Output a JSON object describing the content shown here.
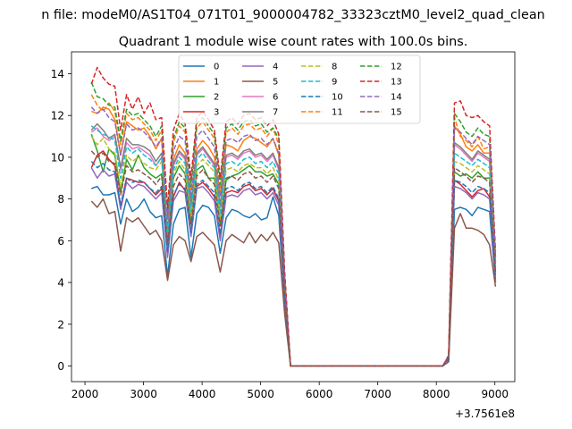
{
  "chart_data": {
    "type": "line",
    "suptitle": "n file: modeM0/AS1T04_071T01_9000004782_33323cztM0_level2_quad_clean",
    "title": "Quadrant 1 module wise count rates with 100.0s bins.",
    "xlabel": "",
    "ylabel": "",
    "x_offset_label": "+3.7561e8",
    "xlim": [
      1770,
      9340
    ],
    "ylim": [
      -0.75,
      15.05
    ],
    "xticks": [
      2000,
      3000,
      4000,
      5000,
      6000,
      7000,
      8000,
      9000
    ],
    "yticks": [
      0,
      2,
      4,
      6,
      8,
      10,
      12,
      14
    ],
    "x": [
      2110,
      2210,
      2310,
      2410,
      2510,
      2610,
      2710,
      2810,
      2910,
      3010,
      3110,
      3210,
      3310,
      3410,
      3510,
      3610,
      3710,
      3810,
      3910,
      4010,
      4110,
      4210,
      4310,
      4410,
      4510,
      4610,
      4710,
      4810,
      4910,
      5010,
      5110,
      5210,
      5310,
      5410,
      5510,
      8110,
      8210,
      8310,
      8410,
      8510,
      8610,
      8710,
      8810,
      8910,
      9010
    ],
    "zero_segment": [
      5510,
      8110
    ],
    "legend": {
      "location": "upper-center",
      "columns": 4
    },
    "series": [
      {
        "name": "0",
        "color": "#1f77b4",
        "dash": "solid",
        "values": [
          8.5,
          8.6,
          8.2,
          8.2,
          8.3,
          6.8,
          8.0,
          7.4,
          7.6,
          8.0,
          7.4,
          7.1,
          7.2,
          4.3,
          6.8,
          7.5,
          7.6,
          5.2,
          7.3,
          7.7,
          7.6,
          7.2,
          5.4,
          7.1,
          7.5,
          7.4,
          7.2,
          7.1,
          7.3,
          7.0,
          7.1,
          8.1,
          7.2,
          3.0,
          0.0,
          0.0,
          0.3,
          7.5,
          7.6,
          7.5,
          7.2,
          7.6,
          7.5,
          7.4,
          4.0
        ]
      },
      {
        "name": "1",
        "color": "#ff7f0e",
        "dash": "solid",
        "values": [
          12.2,
          12.1,
          12.4,
          12.3,
          11.8,
          10.1,
          11.7,
          11.5,
          11.3,
          11.4,
          11.0,
          10.4,
          10.9,
          6.1,
          9.9,
          10.6,
          10.2,
          7.8,
          10.4,
          10.8,
          10.5,
          10.0,
          8.2,
          10.6,
          10.5,
          10.3,
          10.8,
          11.0,
          10.9,
          10.7,
          10.5,
          10.9,
          10.1,
          4.0,
          0.0,
          0.0,
          0.5,
          11.5,
          11.1,
          10.5,
          10.3,
          10.6,
          10.2,
          10.2,
          5.0
        ]
      },
      {
        "name": "2",
        "color": "#2ca02c",
        "dash": "solid",
        "values": [
          11.1,
          10.3,
          9.3,
          10.4,
          10.1,
          8.3,
          9.9,
          9.4,
          10.1,
          9.5,
          9.2,
          9.0,
          9.2,
          5.9,
          9.0,
          9.6,
          9.2,
          6.8,
          9.4,
          9.6,
          9.0,
          9.0,
          6.8,
          8.9,
          9.1,
          9.2,
          9.4,
          9.6,
          9.3,
          9.3,
          9.1,
          9.2,
          8.7,
          3.6,
          0.0,
          0.0,
          0.4,
          9.3,
          9.1,
          9.2,
          9.0,
          9.3,
          9.0,
          9.0,
          4.5
        ]
      },
      {
        "name": "3",
        "color": "#d62728",
        "dash": "solid",
        "values": [
          9.5,
          10.1,
          10.3,
          9.9,
          9.6,
          7.6,
          9.0,
          8.9,
          8.8,
          8.8,
          8.5,
          8.2,
          8.5,
          5.3,
          8.1,
          8.8,
          8.4,
          6.3,
          8.6,
          8.8,
          8.5,
          8.1,
          6.2,
          8.3,
          8.4,
          8.3,
          8.6,
          8.7,
          8.4,
          8.5,
          8.2,
          8.5,
          7.9,
          3.3,
          0.0,
          0.0,
          0.4,
          8.9,
          8.7,
          8.4,
          8.1,
          8.4,
          8.5,
          8.1,
          4.1
        ]
      },
      {
        "name": "4",
        "color": "#9467bd",
        "dash": "solid",
        "values": [
          9.5,
          9.0,
          9.4,
          9.1,
          9.2,
          7.5,
          8.8,
          8.5,
          8.7,
          8.6,
          8.3,
          8.0,
          8.3,
          5.2,
          7.9,
          8.4,
          8.3,
          6.2,
          8.5,
          8.6,
          8.3,
          7.9,
          6.0,
          8.1,
          8.2,
          8.1,
          8.4,
          8.5,
          8.2,
          8.3,
          8.0,
          8.3,
          7.7,
          3.2,
          0.0,
          0.0,
          0.3,
          8.6,
          8.5,
          8.3,
          8.0,
          8.3,
          8.2,
          8.0,
          4.0
        ]
      },
      {
        "name": "5",
        "color": "#8c564b",
        "dash": "solid",
        "values": [
          7.9,
          7.6,
          8.0,
          7.3,
          7.4,
          5.5,
          7.1,
          6.9,
          7.1,
          6.7,
          6.3,
          6.5,
          6.0,
          4.1,
          5.8,
          6.2,
          6.0,
          5.0,
          6.2,
          6.4,
          6.1,
          5.8,
          4.5,
          6.0,
          6.3,
          6.1,
          5.9,
          6.4,
          5.9,
          6.3,
          6.0,
          6.4,
          5.9,
          2.5,
          0.0,
          0.0,
          0.2,
          6.6,
          7.3,
          6.6,
          6.6,
          6.5,
          6.3,
          5.8,
          3.8
        ]
      },
      {
        "name": "6",
        "color": "#e377c2",
        "dash": "solid",
        "values": [
          11.2,
          11.4,
          11.0,
          10.8,
          11.0,
          9.4,
          10.7,
          10.4,
          10.5,
          10.3,
          10.1,
          9.6,
          10.0,
          6.3,
          9.6,
          10.2,
          9.9,
          7.6,
          10.1,
          10.4,
          10.0,
          9.6,
          7.6,
          10.0,
          10.1,
          9.9,
          10.2,
          10.3,
          10.0,
          10.1,
          9.8,
          10.1,
          9.4,
          3.9,
          0.0,
          0.0,
          0.4,
          10.6,
          10.4,
          10.1,
          9.8,
          10.2,
          10.0,
          9.8,
          4.8
        ]
      },
      {
        "name": "7",
        "color": "#7f7f7f",
        "dash": "solid",
        "values": [
          11.3,
          11.6,
          11.3,
          10.9,
          11.1,
          9.5,
          10.9,
          10.6,
          10.6,
          10.5,
          10.3,
          9.8,
          10.2,
          6.4,
          9.7,
          10.3,
          10.0,
          7.7,
          10.2,
          10.5,
          10.1,
          9.7,
          7.7,
          10.1,
          10.2,
          10.0,
          10.3,
          10.4,
          10.1,
          10.2,
          9.9,
          10.2,
          9.5,
          3.9,
          0.0,
          0.0,
          0.4,
          10.7,
          10.5,
          10.2,
          9.9,
          10.3,
          10.1,
          9.9,
          4.9
        ]
      },
      {
        "name": "8",
        "color": "#bcbd22",
        "dash": "dashed",
        "values": [
          11.0,
          10.6,
          10.9,
          10.4,
          10.2,
          8.6,
          10.1,
          9.8,
          10.0,
          9.7,
          9.5,
          9.4,
          9.8,
          6.3,
          9.2,
          9.8,
          9.4,
          7.1,
          9.6,
          9.9,
          9.6,
          9.3,
          7.0,
          9.4,
          9.5,
          9.3,
          9.6,
          9.7,
          9.5,
          9.5,
          9.2,
          9.5,
          8.9,
          3.7,
          0.0,
          0.0,
          0.4,
          9.8,
          9.7,
          9.5,
          9.3,
          9.6,
          9.4,
          9.2,
          4.6
        ]
      },
      {
        "name": "9",
        "color": "#17becf",
        "dash": "dashed",
        "values": [
          11.5,
          11.3,
          11.1,
          11.0,
          10.8,
          9.0,
          10.5,
          10.2,
          10.4,
          10.1,
          9.9,
          9.6,
          10.0,
          6.3,
          9.4,
          10.0,
          9.7,
          7.4,
          9.9,
          10.2,
          9.8,
          9.5,
          7.3,
          9.7,
          9.8,
          9.6,
          9.9,
          10.0,
          9.7,
          9.8,
          9.5,
          9.8,
          9.2,
          3.8,
          0.0,
          0.0,
          0.4,
          10.2,
          10.0,
          9.8,
          9.6,
          9.9,
          9.7,
          9.5,
          4.7
        ]
      },
      {
        "name": "10",
        "color": "#1f77b4",
        "dash": "dashed",
        "values": [
          9.8,
          9.5,
          9.7,
          9.4,
          9.3,
          7.7,
          9.0,
          8.8,
          8.9,
          8.8,
          8.5,
          8.3,
          8.6,
          5.5,
          8.2,
          8.7,
          8.5,
          6.4,
          8.7,
          8.9,
          8.6,
          8.3,
          6.3,
          8.5,
          8.6,
          8.4,
          8.7,
          8.8,
          8.5,
          8.6,
          8.3,
          8.6,
          8.0,
          3.3,
          0.0,
          0.0,
          0.3,
          8.9,
          8.8,
          8.6,
          8.3,
          8.6,
          8.5,
          8.3,
          4.2
        ]
      },
      {
        "name": "11",
        "color": "#ff7f0e",
        "dash": "dashed",
        "values": [
          13.0,
          12.5,
          12.2,
          12.6,
          12.2,
          10.6,
          12.1,
          11.8,
          11.9,
          11.6,
          11.3,
          10.8,
          11.3,
          7.0,
          10.7,
          11.5,
          11.2,
          8.4,
          11.4,
          11.7,
          11.3,
          10.9,
          8.5,
          11.2,
          11.4,
          11.1,
          11.5,
          11.6,
          11.3,
          11.4,
          11.0,
          11.4,
          10.6,
          4.3,
          0.0,
          0.0,
          0.5,
          11.9,
          11.0,
          10.8,
          10.5,
          11.0,
          10.4,
          10.5,
          5.0
        ]
      },
      {
        "name": "12",
        "color": "#2ca02c",
        "dash": "dashed",
        "values": [
          13.6,
          12.9,
          12.8,
          12.5,
          12.4,
          10.8,
          12.3,
          12.0,
          12.1,
          11.8,
          11.5,
          11.0,
          11.5,
          7.2,
          10.9,
          11.7,
          11.4,
          8.6,
          11.6,
          11.9,
          11.5,
          11.1,
          8.7,
          11.4,
          11.6,
          11.3,
          11.7,
          11.8,
          11.5,
          11.6,
          11.2,
          11.4,
          10.9,
          4.4,
          0.0,
          0.0,
          0.5,
          12.1,
          11.7,
          11.2,
          11.0,
          11.4,
          11.1,
          11.0,
          5.2
        ]
      },
      {
        "name": "13",
        "color": "#d62728",
        "dash": "dashed",
        "values": [
          13.5,
          14.3,
          13.8,
          13.5,
          13.4,
          11.3,
          13.0,
          12.3,
          12.9,
          12.1,
          12.6,
          11.8,
          11.9,
          7.6,
          11.3,
          12.1,
          11.6,
          9.0,
          11.9,
          12.2,
          11.8,
          11.3,
          9.0,
          11.7,
          11.9,
          11.6,
          12.0,
          12.1,
          11.8,
          11.9,
          11.5,
          11.8,
          11.1,
          4.5,
          0.0,
          0.0,
          0.5,
          12.6,
          12.7,
          12.0,
          11.9,
          12.0,
          11.7,
          11.5,
          5.5
        ]
      },
      {
        "name": "14",
        "color": "#9467bd",
        "dash": "dashed",
        "values": [
          12.4,
          12.1,
          12.3,
          11.9,
          11.7,
          10.1,
          11.6,
          11.3,
          11.4,
          11.2,
          10.9,
          10.5,
          10.9,
          6.8,
          10.3,
          11.0,
          10.8,
          8.1,
          11.0,
          11.3,
          10.9,
          10.5,
          8.1,
          10.8,
          10.9,
          10.7,
          11.0,
          11.1,
          10.8,
          10.9,
          10.6,
          10.9,
          10.2,
          4.2,
          0.0,
          0.0,
          0.5,
          11.4,
          11.2,
          10.9,
          10.6,
          11.0,
          10.8,
          10.6,
          5.2
        ]
      },
      {
        "name": "15",
        "color": "#8c564b",
        "dash": "dashed",
        "values": [
          10.3,
          10.0,
          10.2,
          9.8,
          9.7,
          8.2,
          9.6,
          9.3,
          9.4,
          9.2,
          9.0,
          8.7,
          9.1,
          5.8,
          8.6,
          9.2,
          8.9,
          6.8,
          9.1,
          9.4,
          9.0,
          8.7,
          6.7,
          9.0,
          9.1,
          8.9,
          9.2,
          9.3,
          9.0,
          9.1,
          8.8,
          9.1,
          8.5,
          3.5,
          0.0,
          0.0,
          0.4,
          9.5,
          9.3,
          9.1,
          8.8,
          9.1,
          9.0,
          8.8,
          4.4
        ]
      }
    ]
  }
}
